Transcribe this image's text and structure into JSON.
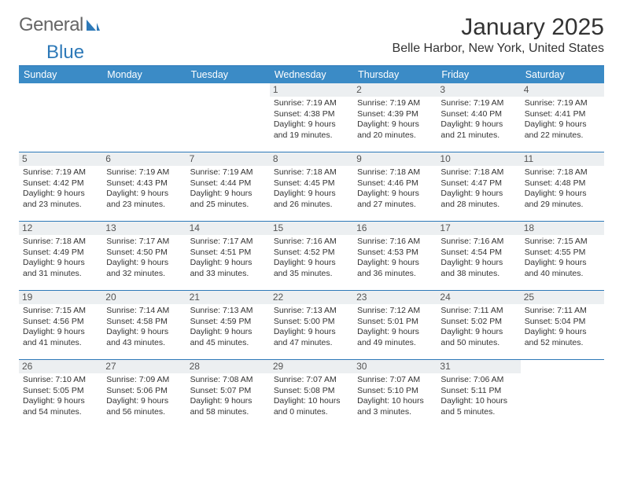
{
  "brand": {
    "part1": "General",
    "part2": "Blue"
  },
  "title": "January 2025",
  "location": "Belle Harbor, New York, United States",
  "colors": {
    "header_bg": "#3b8bc6",
    "header_text": "#ffffff",
    "row_border": "#2d79b8",
    "daynum_bg": "#eceff1",
    "text": "#333333",
    "brand_blue": "#2d79b8"
  },
  "weekdays": [
    "Sunday",
    "Monday",
    "Tuesday",
    "Wednesday",
    "Thursday",
    "Friday",
    "Saturday"
  ],
  "weeks": [
    [
      {
        "n": "",
        "sr": "",
        "ss": "",
        "dl": ""
      },
      {
        "n": "",
        "sr": "",
        "ss": "",
        "dl": ""
      },
      {
        "n": "",
        "sr": "",
        "ss": "",
        "dl": ""
      },
      {
        "n": "1",
        "sr": "Sunrise: 7:19 AM",
        "ss": "Sunset: 4:38 PM",
        "dl": "Daylight: 9 hours and 19 minutes."
      },
      {
        "n": "2",
        "sr": "Sunrise: 7:19 AM",
        "ss": "Sunset: 4:39 PM",
        "dl": "Daylight: 9 hours and 20 minutes."
      },
      {
        "n": "3",
        "sr": "Sunrise: 7:19 AM",
        "ss": "Sunset: 4:40 PM",
        "dl": "Daylight: 9 hours and 21 minutes."
      },
      {
        "n": "4",
        "sr": "Sunrise: 7:19 AM",
        "ss": "Sunset: 4:41 PM",
        "dl": "Daylight: 9 hours and 22 minutes."
      }
    ],
    [
      {
        "n": "5",
        "sr": "Sunrise: 7:19 AM",
        "ss": "Sunset: 4:42 PM",
        "dl": "Daylight: 9 hours and 23 minutes."
      },
      {
        "n": "6",
        "sr": "Sunrise: 7:19 AM",
        "ss": "Sunset: 4:43 PM",
        "dl": "Daylight: 9 hours and 23 minutes."
      },
      {
        "n": "7",
        "sr": "Sunrise: 7:19 AM",
        "ss": "Sunset: 4:44 PM",
        "dl": "Daylight: 9 hours and 25 minutes."
      },
      {
        "n": "8",
        "sr": "Sunrise: 7:18 AM",
        "ss": "Sunset: 4:45 PM",
        "dl": "Daylight: 9 hours and 26 minutes."
      },
      {
        "n": "9",
        "sr": "Sunrise: 7:18 AM",
        "ss": "Sunset: 4:46 PM",
        "dl": "Daylight: 9 hours and 27 minutes."
      },
      {
        "n": "10",
        "sr": "Sunrise: 7:18 AM",
        "ss": "Sunset: 4:47 PM",
        "dl": "Daylight: 9 hours and 28 minutes."
      },
      {
        "n": "11",
        "sr": "Sunrise: 7:18 AM",
        "ss": "Sunset: 4:48 PM",
        "dl": "Daylight: 9 hours and 29 minutes."
      }
    ],
    [
      {
        "n": "12",
        "sr": "Sunrise: 7:18 AM",
        "ss": "Sunset: 4:49 PM",
        "dl": "Daylight: 9 hours and 31 minutes."
      },
      {
        "n": "13",
        "sr": "Sunrise: 7:17 AM",
        "ss": "Sunset: 4:50 PM",
        "dl": "Daylight: 9 hours and 32 minutes."
      },
      {
        "n": "14",
        "sr": "Sunrise: 7:17 AM",
        "ss": "Sunset: 4:51 PM",
        "dl": "Daylight: 9 hours and 33 minutes."
      },
      {
        "n": "15",
        "sr": "Sunrise: 7:16 AM",
        "ss": "Sunset: 4:52 PM",
        "dl": "Daylight: 9 hours and 35 minutes."
      },
      {
        "n": "16",
        "sr": "Sunrise: 7:16 AM",
        "ss": "Sunset: 4:53 PM",
        "dl": "Daylight: 9 hours and 36 minutes."
      },
      {
        "n": "17",
        "sr": "Sunrise: 7:16 AM",
        "ss": "Sunset: 4:54 PM",
        "dl": "Daylight: 9 hours and 38 minutes."
      },
      {
        "n": "18",
        "sr": "Sunrise: 7:15 AM",
        "ss": "Sunset: 4:55 PM",
        "dl": "Daylight: 9 hours and 40 minutes."
      }
    ],
    [
      {
        "n": "19",
        "sr": "Sunrise: 7:15 AM",
        "ss": "Sunset: 4:56 PM",
        "dl": "Daylight: 9 hours and 41 minutes."
      },
      {
        "n": "20",
        "sr": "Sunrise: 7:14 AM",
        "ss": "Sunset: 4:58 PM",
        "dl": "Daylight: 9 hours and 43 minutes."
      },
      {
        "n": "21",
        "sr": "Sunrise: 7:13 AM",
        "ss": "Sunset: 4:59 PM",
        "dl": "Daylight: 9 hours and 45 minutes."
      },
      {
        "n": "22",
        "sr": "Sunrise: 7:13 AM",
        "ss": "Sunset: 5:00 PM",
        "dl": "Daylight: 9 hours and 47 minutes."
      },
      {
        "n": "23",
        "sr": "Sunrise: 7:12 AM",
        "ss": "Sunset: 5:01 PM",
        "dl": "Daylight: 9 hours and 49 minutes."
      },
      {
        "n": "24",
        "sr": "Sunrise: 7:11 AM",
        "ss": "Sunset: 5:02 PM",
        "dl": "Daylight: 9 hours and 50 minutes."
      },
      {
        "n": "25",
        "sr": "Sunrise: 7:11 AM",
        "ss": "Sunset: 5:04 PM",
        "dl": "Daylight: 9 hours and 52 minutes."
      }
    ],
    [
      {
        "n": "26",
        "sr": "Sunrise: 7:10 AM",
        "ss": "Sunset: 5:05 PM",
        "dl": "Daylight: 9 hours and 54 minutes."
      },
      {
        "n": "27",
        "sr": "Sunrise: 7:09 AM",
        "ss": "Sunset: 5:06 PM",
        "dl": "Daylight: 9 hours and 56 minutes."
      },
      {
        "n": "28",
        "sr": "Sunrise: 7:08 AM",
        "ss": "Sunset: 5:07 PM",
        "dl": "Daylight: 9 hours and 58 minutes."
      },
      {
        "n": "29",
        "sr": "Sunrise: 7:07 AM",
        "ss": "Sunset: 5:08 PM",
        "dl": "Daylight: 10 hours and 0 minutes."
      },
      {
        "n": "30",
        "sr": "Sunrise: 7:07 AM",
        "ss": "Sunset: 5:10 PM",
        "dl": "Daylight: 10 hours and 3 minutes."
      },
      {
        "n": "31",
        "sr": "Sunrise: 7:06 AM",
        "ss": "Sunset: 5:11 PM",
        "dl": "Daylight: 10 hours and 5 minutes."
      },
      {
        "n": "",
        "sr": "",
        "ss": "",
        "dl": ""
      }
    ]
  ]
}
